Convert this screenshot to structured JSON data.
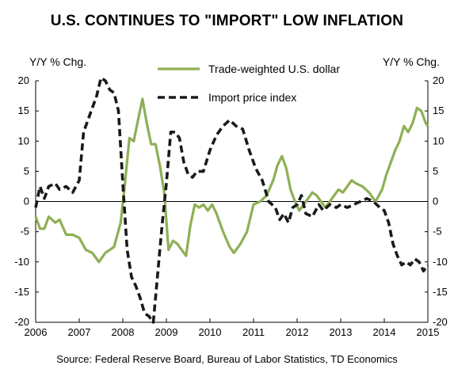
{
  "colors": {
    "series_1": "#8faf55",
    "series_2": "#1a1a1a"
  },
  "chart_data": {
    "type": "line",
    "title": "U.S. CONTINUES TO \"IMPORT\" LOW INFLATION",
    "source": "Source: Federal Reserve Board, Bureau of Labor Statistics, TD Economics",
    "ylabel_left": "Y/Y % Chg.",
    "ylabel_right": "Y/Y % Chg.",
    "xlim": [
      2006,
      2015
    ],
    "ylim": [
      -20,
      20
    ],
    "x_ticks": [
      "2006",
      "2007",
      "2008",
      "2009",
      "2010",
      "2011",
      "2012",
      "2013",
      "2014",
      "2015"
    ],
    "y_ticks_left": [
      "20",
      "15",
      "10",
      "5",
      "0",
      "-5",
      "-10",
      "-15",
      "-20"
    ],
    "y_ticks_right": [
      "20",
      "15",
      "10",
      "5",
      "0",
      "-5",
      "-10",
      "-15",
      "-20"
    ],
    "legend_position": "top-center",
    "grid": false,
    "series": [
      {
        "name": "Trade-weighted U.S. dollar",
        "style": "solid",
        "color": "#8faf55",
        "x": [
          2006.0,
          2006.1,
          2006.2,
          2006.3,
          2006.45,
          2006.55,
          2006.7,
          2006.85,
          2007.0,
          2007.15,
          2007.3,
          2007.45,
          2007.6,
          2007.8,
          2007.95,
          2008.05,
          2008.15,
          2008.25,
          2008.35,
          2008.45,
          2008.55,
          2008.65,
          2008.75,
          2008.85,
          2008.95,
          2009.05,
          2009.15,
          2009.25,
          2009.35,
          2009.45,
          2009.55,
          2009.65,
          2009.75,
          2009.85,
          2009.95,
          2010.05,
          2010.15,
          2010.3,
          2010.45,
          2010.55,
          2010.7,
          2010.85,
          2011.0,
          2011.15,
          2011.3,
          2011.45,
          2011.55,
          2011.65,
          2011.75,
          2011.85,
          2011.95,
          2012.05,
          2012.15,
          2012.25,
          2012.35,
          2012.45,
          2012.55,
          2012.65,
          2012.8,
          2012.95,
          2013.05,
          2013.15,
          2013.25,
          2013.35,
          2013.5,
          2013.65,
          2013.8,
          2013.95,
          2014.05,
          2014.15,
          2014.25,
          2014.35,
          2014.45,
          2014.55,
          2014.65,
          2014.75,
          2014.85,
          2014.95,
          2015.0
        ],
        "values": [
          -2.5,
          -4.5,
          -4.5,
          -2.5,
          -3.5,
          -3.0,
          -5.5,
          -5.5,
          -6.0,
          -8.0,
          -8.5,
          -10.0,
          -8.5,
          -7.5,
          -3.5,
          3.0,
          10.5,
          10.0,
          13.5,
          17.0,
          13.0,
          9.5,
          9.5,
          6.0,
          1.5,
          -8.0,
          -6.5,
          -7.0,
          -8.0,
          -9.0,
          -4.0,
          -0.5,
          -1.0,
          -0.5,
          -1.5,
          -0.5,
          -2.0,
          -5.0,
          -7.5,
          -8.5,
          -7.0,
          -5.0,
          -0.5,
          0.0,
          1.0,
          3.5,
          6.0,
          7.5,
          5.5,
          2.0,
          0.0,
          -1.5,
          -0.5,
          0.5,
          1.5,
          1.0,
          0.0,
          -1.0,
          0.5,
          2.0,
          1.5,
          2.5,
          3.5,
          3.0,
          2.5,
          1.5,
          0.0,
          2.0,
          4.5,
          6.5,
          8.5,
          10.0,
          12.5,
          11.5,
          13.0,
          15.5,
          15.0,
          13.0,
          12.5
        ]
      },
      {
        "name": "Import price index",
        "style": "dashed",
        "color": "#1a1a1a",
        "x": [
          2006.0,
          2006.1,
          2006.2,
          2006.3,
          2006.45,
          2006.55,
          2006.7,
          2006.85,
          2007.0,
          2007.1,
          2007.2,
          2007.3,
          2007.4,
          2007.5,
          2007.6,
          2007.7,
          2007.8,
          2007.9,
          2008.0,
          2008.1,
          2008.2,
          2008.3,
          2008.4,
          2008.5,
          2008.6,
          2008.7,
          2008.8,
          2008.9,
          2009.0,
          2009.1,
          2009.2,
          2009.3,
          2009.4,
          2009.5,
          2009.6,
          2009.7,
          2009.85,
          2010.0,
          2010.15,
          2010.3,
          2010.45,
          2010.6,
          2010.75,
          2010.9,
          2011.05,
          2011.2,
          2011.35,
          2011.5,
          2011.6,
          2011.7,
          2011.8,
          2011.9,
          2012.0,
          2012.1,
          2012.2,
          2012.35,
          2012.5,
          2012.6,
          2012.75,
          2012.9,
          2013.0,
          2013.15,
          2013.3,
          2013.45,
          2013.6,
          2013.75,
          2013.9,
          2014.0,
          2014.1,
          2014.2,
          2014.3,
          2014.4,
          2014.5,
          2014.6,
          2014.7,
          2014.8,
          2014.9,
          2015.0
        ],
        "values": [
          -1.0,
          2.5,
          0.5,
          2.5,
          3.0,
          2.0,
          2.5,
          1.5,
          3.5,
          11.5,
          13.5,
          15.5,
          17.5,
          20.5,
          20.0,
          18.5,
          18.0,
          15.0,
          3.0,
          -8.0,
          -12.5,
          -14.0,
          -16.0,
          -18.5,
          -19.0,
          -20.0,
          -12.0,
          -4.0,
          3.0,
          11.5,
          11.5,
          10.5,
          6.5,
          4.5,
          4.0,
          5.0,
          5.0,
          8.5,
          11.0,
          12.5,
          13.5,
          12.5,
          12.0,
          8.5,
          5.5,
          3.5,
          0.0,
          -1.0,
          -3.0,
          -2.0,
          -3.5,
          -1.0,
          -0.5,
          1.0,
          -2.0,
          -2.5,
          -0.5,
          -1.5,
          -0.5,
          -1.0,
          -0.5,
          -1.0,
          -0.5,
          0.0,
          0.5,
          0.0,
          -1.0,
          -1.5,
          -3.5,
          -7.0,
          -9.0,
          -10.5,
          -10.0,
          -10.5,
          -9.5,
          -10.0,
          -11.5,
          -10.5
        ]
      }
    ]
  }
}
